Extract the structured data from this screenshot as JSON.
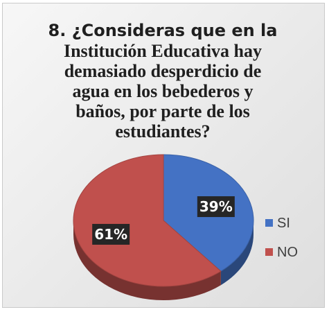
{
  "chart_data": {
    "type": "pie",
    "title_lines": [
      "8. ¿Consideras que en la",
      "Institución Educativa hay",
      "demasiado desperdicio de",
      "agua en los bebederos y",
      "baños, por parte de los",
      "estudiantes?"
    ],
    "categories": [
      "SI",
      "NO"
    ],
    "values": [
      39,
      61
    ],
    "data_labels": [
      "39%",
      "61%"
    ],
    "colors": [
      "#4472c4",
      "#c0504d"
    ],
    "legend_position": "right",
    "style": "3d-pie"
  }
}
